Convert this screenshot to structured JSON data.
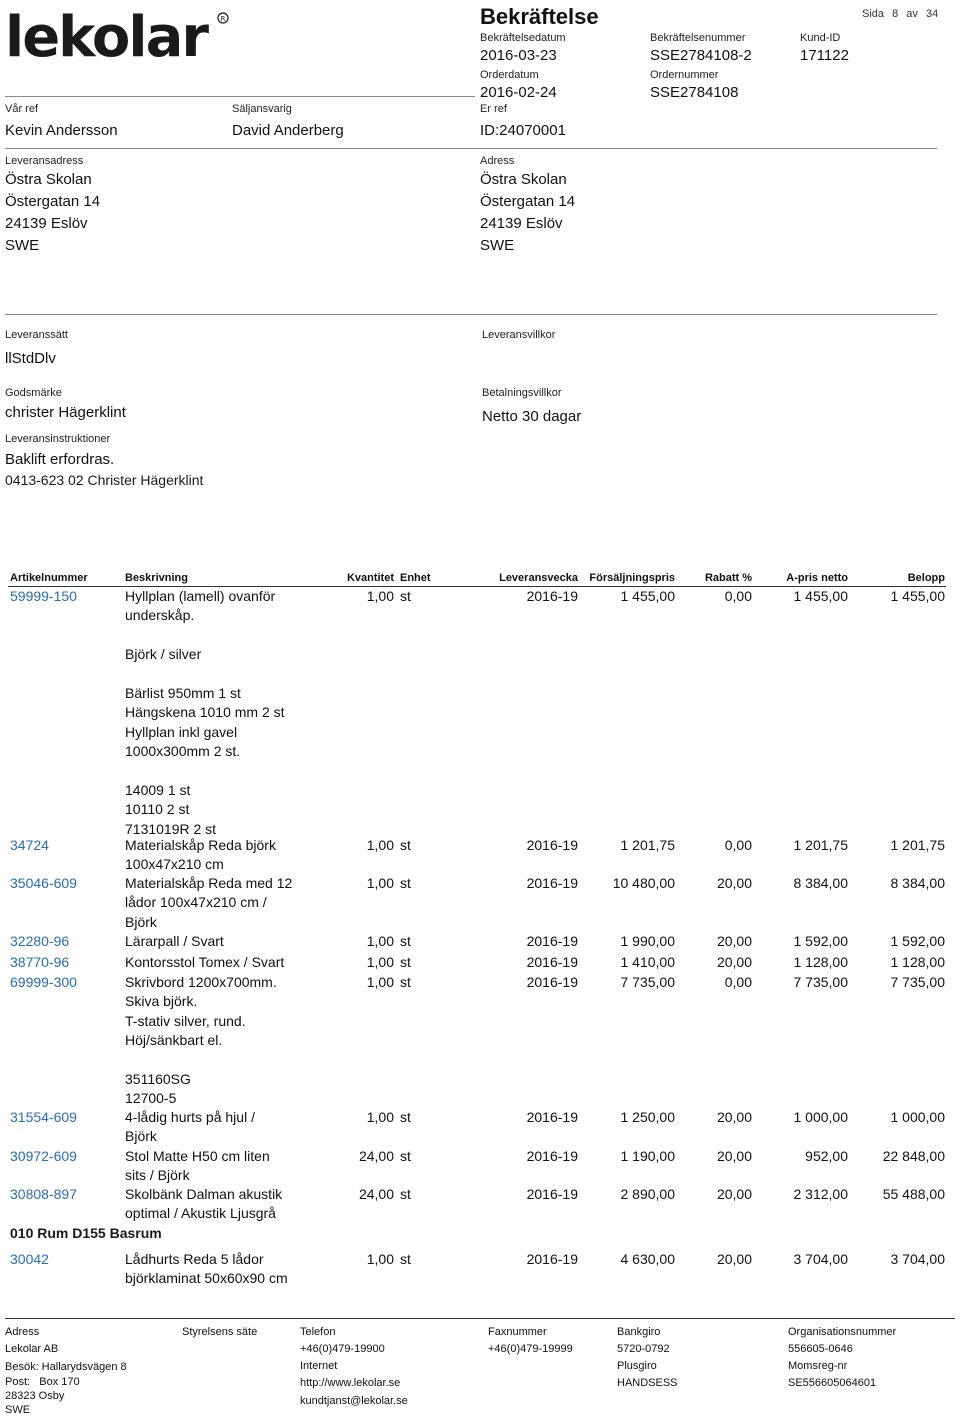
{
  "header": {
    "brand": "lekolar",
    "title": "Bekräftelse",
    "page_label": "Sida",
    "page_num": "8",
    "page_of": "av",
    "page_total": "34",
    "confirm_date_label": "Bekräftelsedatum",
    "confirm_date": "2016-03-23",
    "confirm_no_label": "Bekräftelsenummer",
    "confirm_no": "SSE2784108-2",
    "customer_id_label": "Kund-ID",
    "customer_id": "171122",
    "order_date_label": "Orderdatum",
    "order_date": "2016-02-24",
    "order_no_label": "Ordernummer",
    "order_no": "SSE2784108",
    "our_ref_label": "Vår ref",
    "our_ref": "Kevin Andersson",
    "seller_label": "Säljansvarig",
    "seller": "David Anderberg",
    "your_ref_label": "Er ref",
    "your_ref": "ID:24070001"
  },
  "addresses": {
    "delivery_label": "Leveransadress",
    "delivery": [
      "Östra Skolan",
      "Östergatan 14",
      "24139 Eslöv",
      "SWE"
    ],
    "address_label": "Adress",
    "address": [
      "Östra Skolan",
      "Östergatan 14",
      "24139 Eslöv",
      "SWE"
    ]
  },
  "terms": {
    "method_label": "Leveranssätt",
    "method": "llStdDlv",
    "conditions_label": "Leveransvillkor",
    "goods_label": "Godsmärke",
    "goods": "christer Hägerklint",
    "payment_label": "Betalningsvillkor",
    "payment": "Netto 30 dagar",
    "instructions_label": "Leveransinstruktioner",
    "instructions_1": "Baklift erfordras.",
    "instructions_2": "0413-623 02 Christer Hägerklint"
  },
  "table": {
    "headers": {
      "art": "Artikelnummer",
      "desc": "Beskrivning",
      "qty": "Kvantitet",
      "unit": "Enhet",
      "week": "Leveransvecka",
      "price": "Försäljningspris",
      "disc": "Rabatt %",
      "net": "A-pris netto",
      "amount": "Belopp"
    },
    "rows": [
      {
        "art": "59999-150",
        "desc": [
          "Hyllplan (lamell) ovanför",
          "underskåp.",
          "",
          "Björk / silver",
          "",
          "Bärlist 950mm 1 st",
          "Hängskena 1010 mm 2 st",
          "Hyllplan inkl gavel",
          "1000x300mm 2 st.",
          "",
          "14009 1 st",
          "10110 2 st",
          "7131019R 2 st"
        ],
        "qty": "1,00",
        "unit": "st",
        "week": "2016-19",
        "price": "1 455,00",
        "disc": "0,00",
        "net": "1 455,00",
        "amount": "1 455,00"
      },
      {
        "art": "34724",
        "desc": [
          "Materialskåp Reda björk",
          "100x47x210 cm"
        ],
        "qty": "1,00",
        "unit": "st",
        "week": "2016-19",
        "price": "1 201,75",
        "disc": "0,00",
        "net": "1 201,75",
        "amount": "1 201,75"
      },
      {
        "art": "35046-609",
        "desc": [
          "Materialskåp Reda med 12",
          "lådor 100x47x210 cm /",
          "Björk"
        ],
        "qty": "1,00",
        "unit": "st",
        "week": "2016-19",
        "price": "10 480,00",
        "disc": "20,00",
        "net": "8 384,00",
        "amount": "8 384,00"
      },
      {
        "art": "32280-96",
        "desc": [
          "Lärarpall / Svart"
        ],
        "qty": "1,00",
        "unit": "st",
        "week": "2016-19",
        "price": "1 990,00",
        "disc": "20,00",
        "net": "1 592,00",
        "amount": "1 592,00"
      },
      {
        "art": "38770-96",
        "desc": [
          "Kontorsstol Tomex / Svart"
        ],
        "qty": "1,00",
        "unit": "st",
        "week": "2016-19",
        "price": "1 410,00",
        "disc": "20,00",
        "net": "1 128,00",
        "amount": "1 128,00"
      },
      {
        "art": "69999-300",
        "desc": [
          "Skrivbord 1200x700mm.",
          "Skiva björk.",
          "T-stativ silver, rund.",
          "Höj/sänkbart el.",
          "",
          "351160SG",
          "12700-5"
        ],
        "qty": "1,00",
        "unit": "st",
        "week": "2016-19",
        "price": "7 735,00",
        "disc": "0,00",
        "net": "7 735,00",
        "amount": "7 735,00"
      },
      {
        "art": "31554-609",
        "desc": [
          "4-lådig hurts på hjul /",
          "Björk"
        ],
        "qty": "1,00",
        "unit": "st",
        "week": "2016-19",
        "price": "1 250,00",
        "disc": "20,00",
        "net": "1 000,00",
        "amount": "1 000,00"
      },
      {
        "art": "30972-609",
        "desc": [
          "Stol Matte H50 cm liten",
          "sits / Björk"
        ],
        "qty": "24,00",
        "unit": "st",
        "week": "2016-19",
        "price": "1 190,00",
        "disc": "20,00",
        "net": "952,00",
        "amount": "22 848,00"
      },
      {
        "art": "30808-897",
        "desc": [
          "Skolbänk Dalman akustik",
          "optimal / Akustik Ljusgrå"
        ],
        "qty": "24,00",
        "unit": "st",
        "week": "2016-19",
        "price": "2 890,00",
        "disc": "20,00",
        "net": "2 312,00",
        "amount": "55 488,00"
      },
      {
        "art": "30042",
        "desc": [
          "Lådhurts Reda 5 lådor",
          "björklaminat 50x60x90 cm"
        ],
        "qty": "1,00",
        "unit": "st",
        "week": "2016-19",
        "price": "4 630,00",
        "disc": "20,00",
        "net": "3 704,00",
        "amount": "3 704,00"
      }
    ],
    "section_heading": "010 Rum D155 Basrum"
  },
  "footer": {
    "address_label": "Adress",
    "company": "Lekolar AB",
    "visit": "Besök: Hallarydsvägen 8",
    "post": "Post:   Box 170",
    "zip": "28323 Osby",
    "country": "SWE",
    "board_label": "Styrelsens säte",
    "phone_label": "Telefon",
    "phone": "+46(0)479-19900",
    "internet_label": "Internet",
    "web": "http://www.lekolar.se",
    "email": "kundtjanst@lekolar.se",
    "fax_label": "Faxnummer",
    "fax": "+46(0)479-19999",
    "bankgiro_label": "Bankgiro",
    "bankgiro": "5720-0792",
    "plusgiro_label": "Plusgiro",
    "plusgiro": "HANDSESS",
    "org_label": "Organisationsnummer",
    "org": "556605-0646",
    "vat_label": "Momsreg-nr",
    "vat": "SE556605064601"
  }
}
